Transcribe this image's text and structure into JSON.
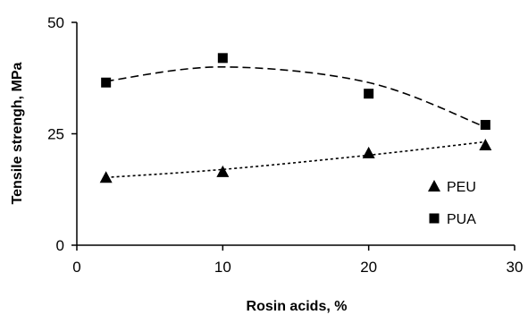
{
  "chart_data": {
    "type": "scatter",
    "title": "",
    "xlabel": "Rosin acids, %",
    "ylabel": "Tensile strengh, MPa",
    "xlim": [
      0,
      30
    ],
    "ylim": [
      0,
      50
    ],
    "xticks": [
      "0",
      "10",
      "20",
      "30"
    ],
    "yticks": [
      "0",
      "25",
      "50"
    ],
    "grid": false,
    "legend_position": "right",
    "series": [
      {
        "name": "PEU",
        "marker": "triangle",
        "color": "#000000",
        "x": [
          2,
          10,
          20,
          28
        ],
        "y": [
          15.2,
          16.5,
          20.7,
          22.5
        ],
        "trend": "dotted",
        "trend_y": [
          15.2,
          17,
          20.2,
          23.2
        ]
      },
      {
        "name": "PUA",
        "marker": "square",
        "color": "#000000",
        "x": [
          2,
          10,
          20,
          28
        ],
        "y": [
          36.5,
          42,
          34,
          27
        ],
        "trend": "dashed",
        "trend_y": [
          36.8,
          40,
          36.5,
          26.5
        ]
      }
    ]
  }
}
